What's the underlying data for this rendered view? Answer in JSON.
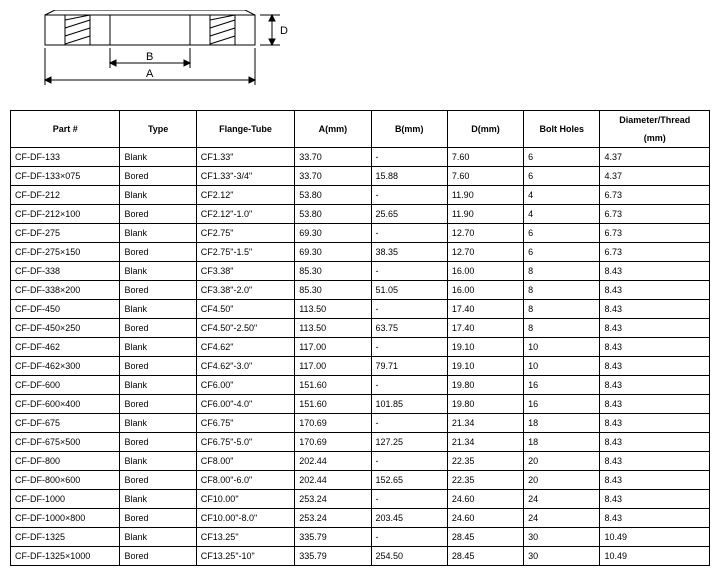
{
  "diagram": {
    "labels": {
      "A": "A",
      "B": "B",
      "D": "D"
    }
  },
  "table": {
    "headers": [
      "Part #",
      "Type",
      "Flange-Tube",
      "A(mm)",
      "B(mm)",
      "D(mm)",
      "Bolt Holes",
      "Diameter/Thread"
    ],
    "headers_sub": [
      "",
      "",
      "",
      "",
      "",
      "",
      "",
      "(mm)"
    ],
    "rows": [
      [
        "CF-DF-133",
        "Blank",
        "CF1.33\"",
        "33.70",
        "-",
        "7.60",
        "6",
        "4.37"
      ],
      [
        "CF-DF-133×075",
        "Bored",
        "CF1.33\"-3/4\"",
        "33.70",
        "15.88",
        "7.60",
        "6",
        "4.37"
      ],
      [
        "CF-DF-212",
        "Blank",
        "CF2.12\"",
        "53.80",
        "-",
        "11.90",
        "4",
        "6.73"
      ],
      [
        "CF-DF-212×100",
        "Bored",
        "CF2.12\"-1.0\"",
        "53.80",
        "25.65",
        "11.90",
        "4",
        "6.73"
      ],
      [
        "CF-DF-275",
        "Blank",
        "CF2.75\"",
        "69.30",
        "-",
        "12.70",
        "6",
        "6.73"
      ],
      [
        "CF-DF-275×150",
        "Bored",
        "CF2.75\"-1.5\"",
        "69.30",
        "38.35",
        "12.70",
        "6",
        "6.73"
      ],
      [
        "CF-DF-338",
        "Blank",
        "CF3.38\"",
        "85.30",
        "-",
        "16.00",
        "8",
        "8.43"
      ],
      [
        "CF-DF-338×200",
        "Bored",
        "CF3.38\"-2.0\"",
        "85.30",
        "51.05",
        "16.00",
        "8",
        "8.43"
      ],
      [
        "CF-DF-450",
        "Blank",
        "CF4.50\"",
        "113.50",
        "-",
        "17.40",
        "8",
        "8.43"
      ],
      [
        "CF-DF-450×250",
        "Bored",
        "CF4.50\"-2.50\"",
        "113.50",
        "63.75",
        "17.40",
        "8",
        "8.43"
      ],
      [
        "CF-DF-462",
        "Blank",
        "CF4.62\"",
        "117.00",
        "-",
        "19.10",
        "10",
        "8.43"
      ],
      [
        "CF-DF-462×300",
        "Bored",
        "CF4.62\"-3.0\"",
        "117.00",
        "79.71",
        "19.10",
        "10",
        "8.43"
      ],
      [
        "CF-DF-600",
        "Blank",
        "CF6.00\"",
        "151.60",
        "-",
        "19.80",
        "16",
        "8.43"
      ],
      [
        "CF-DF-600×400",
        "Bored",
        "CF6.00\"-4.0\"",
        "151.60",
        "101.85",
        "19.80",
        "16",
        "8.43"
      ],
      [
        "CF-DF-675",
        "Blank",
        "CF6.75\"",
        "170.69",
        "-",
        "21.34",
        "18",
        "8.43"
      ],
      [
        "CF-DF-675×500",
        "Bored",
        "CF6.75\"-5.0\"",
        "170.69",
        "127.25",
        "21.34",
        "18",
        "8.43"
      ],
      [
        "CF-DF-800",
        "Blank",
        "CF8.00\"",
        "202.44",
        "-",
        "22.35",
        "20",
        "8.43"
      ],
      [
        "CF-DF-800×600",
        "Bored",
        "CF8.00\"-6.0\"",
        "202.44",
        "152.65",
        "22.35",
        "20",
        "8.43"
      ],
      [
        "CF-DF-1000",
        "Blank",
        "CF10.00\"",
        "253.24",
        "-",
        "24.60",
        "24",
        "8.43"
      ],
      [
        "CF-DF-1000×800",
        "Bored",
        "CF10.00\"-8.0\"",
        "253.24",
        "203.45",
        "24.60",
        "24",
        "8.43"
      ],
      [
        "CF-DF-1325",
        "Blank",
        "CF13.25\"",
        "335.79",
        "-",
        "28.45",
        "30",
        "10.49"
      ],
      [
        "CF-DF-1325×1000",
        "Bored",
        "CF13.25\"-10\"",
        "335.79",
        "254.50",
        "28.45",
        "30",
        "10.49"
      ]
    ]
  }
}
